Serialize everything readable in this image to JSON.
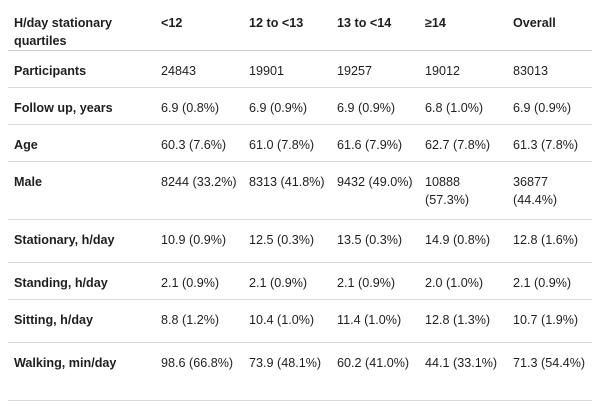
{
  "table": {
    "headers": [
      "H/day stationary quartiles",
      "<12",
      "12 to <13",
      "13 to <14",
      "≥14",
      "Overall"
    ],
    "rows": [
      {
        "label": "Participants",
        "values": [
          "24843",
          "19901",
          "19257",
          "19012",
          "83013"
        ]
      },
      {
        "label": "Follow up, years",
        "values": [
          "6.9 (0.8%)",
          "6.9 (0.9%)",
          "6.9 (0.9%)",
          "6.8 (1.0%)",
          "6.9 (0.9%)"
        ]
      },
      {
        "label": "Age",
        "values": [
          "60.3 (7.6%)",
          "61.0 (7.8%)",
          "61.6 (7.9%)",
          "62.7 (7.8%)",
          "61.3 (7.8%)"
        ]
      },
      {
        "label": "Male",
        "values": [
          "8244 (33.2%)",
          "8313 (41.8%)",
          "9432 (49.0%)",
          "10888 (57.3%)",
          "36877 (44.4%)"
        ]
      },
      {
        "label": "Stationary, h/day",
        "values": [
          "10.9 (0.9%)",
          "12.5 (0.3%)",
          "13.5 (0.3%)",
          "14.9 (0.8%)",
          "12.8 (1.6%)"
        ]
      },
      {
        "label": "Standing, h/day",
        "values": [
          "2.1 (0.9%)",
          "2.1 (0.9%)",
          "2.1 (0.9%)",
          "2.0 (1.0%)",
          "2.1 (0.9%)"
        ]
      },
      {
        "label": "Sitting, h/day",
        "values": [
          "8.8 (1.2%)",
          "10.4 (1.0%)",
          "11.4 (1.0%)",
          "12.8 (1.3%)",
          "10.7 (1.9%)"
        ]
      },
      {
        "label": "Walking, min/day",
        "values": [
          "98.6 (66.8%)",
          "73.9 (48.1%)",
          "60.2 (41.0%)",
          "44.1 (33.1%)",
          "71.3 (54.4%)"
        ]
      }
    ]
  }
}
